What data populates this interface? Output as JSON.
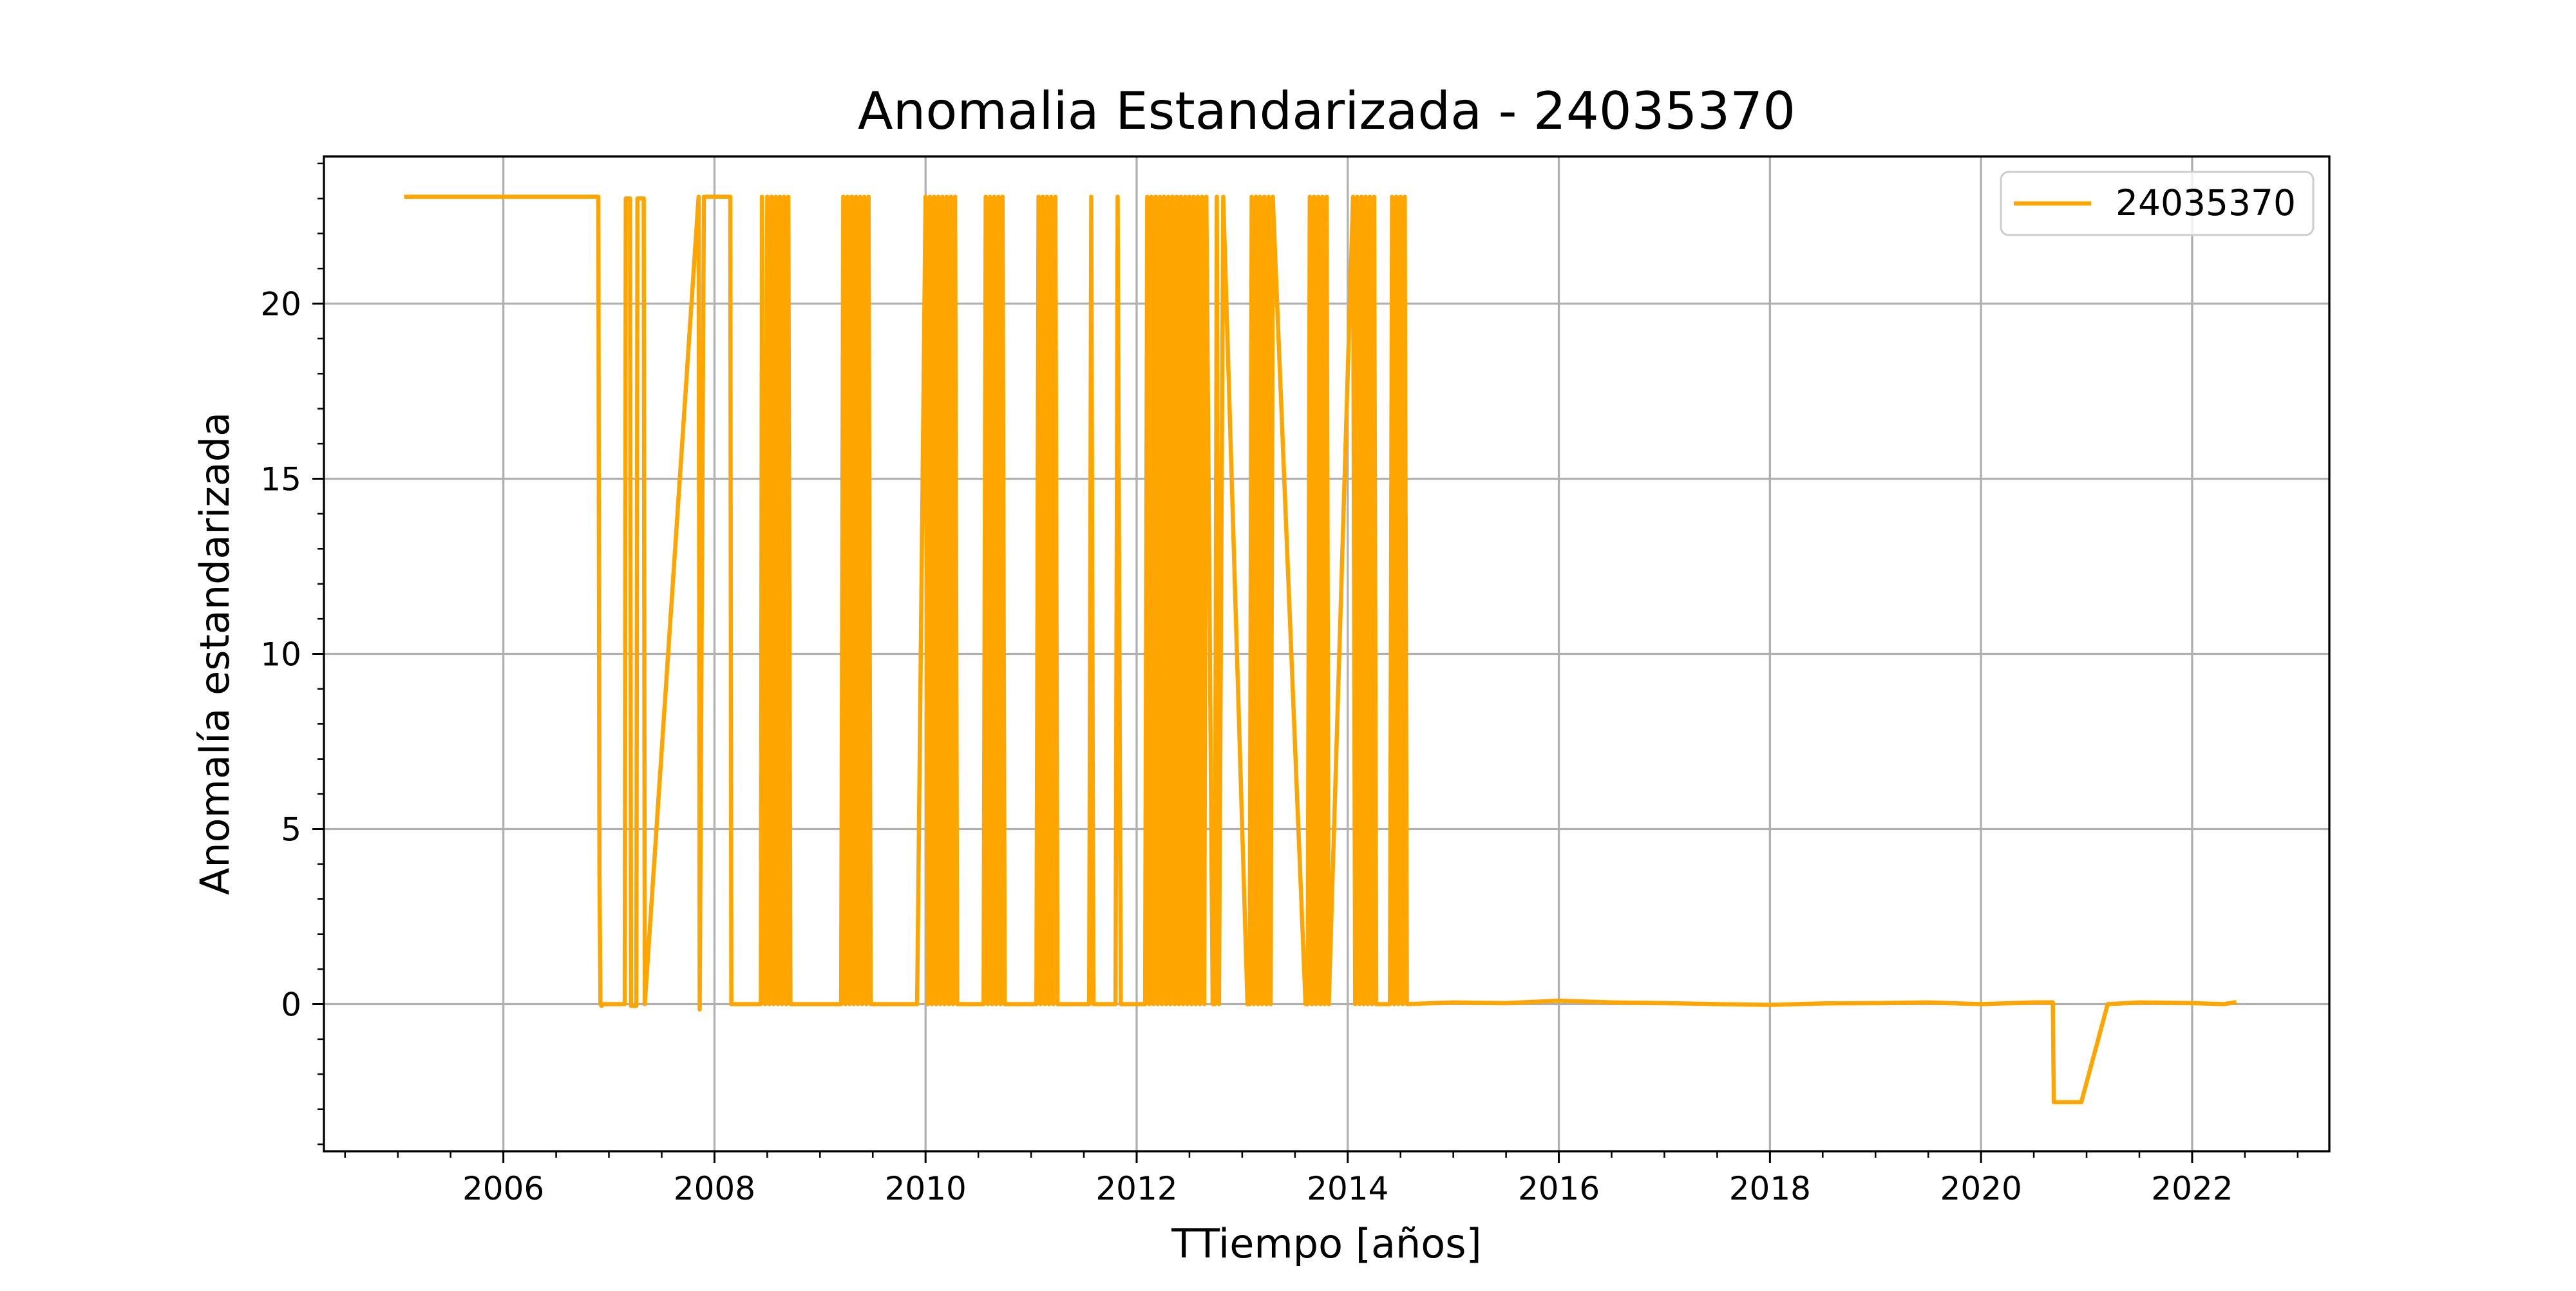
{
  "chart_data": {
    "type": "line",
    "title": "Anomalia Estandarizada - 24035370",
    "xlabel": "TTiempo [años]",
    "ylabel": "Anomalía estandarizada",
    "xlim": [
      2004.3,
      2023.3
    ],
    "ylim": [
      -4.2,
      24.2
    ],
    "xticks": [
      {
        "value": 2006,
        "label": "2006"
      },
      {
        "value": 2008,
        "label": "2008"
      },
      {
        "value": 2010,
        "label": "2010"
      },
      {
        "value": 2012,
        "label": "2012"
      },
      {
        "value": 2014,
        "label": "2014"
      },
      {
        "value": 2016,
        "label": "2016"
      },
      {
        "value": 2018,
        "label": "2018"
      },
      {
        "value": 2020,
        "label": "2020"
      },
      {
        "value": 2022,
        "label": "2022"
      }
    ],
    "x_minor_step": 0.5,
    "yticks": [
      {
        "value": 0,
        "label": "0"
      },
      {
        "value": 5,
        "label": "5"
      },
      {
        "value": 10,
        "label": "10"
      },
      {
        "value": 15,
        "label": "15"
      },
      {
        "value": 20,
        "label": "20"
      }
    ],
    "y_minor_step": 1,
    "grid": true,
    "legend_position": "top-right",
    "series": [
      {
        "name": "24035370",
        "color": "#FFA500",
        "x": [
          2005.08,
          2006.9,
          2006.91,
          2006.92,
          2006.93,
          2006.95,
          2007.15,
          2007.16,
          2007.2,
          2007.21,
          2007.26,
          2007.27,
          2007.33,
          2007.34,
          2007.85,
          2007.86,
          2007.9,
          2007.91,
          2008.15,
          2008.16,
          2008.22,
          2008.24,
          2008.44,
          2008.45,
          2008.48,
          2008.5,
          2008.52,
          2008.54,
          2008.56,
          2008.58,
          2008.6,
          2008.62,
          2008.64,
          2008.66,
          2008.68,
          2008.7,
          2008.72,
          2008.74,
          2009.2,
          2009.22,
          2009.24,
          2009.26,
          2009.28,
          2009.3,
          2009.32,
          2009.34,
          2009.36,
          2009.38,
          2009.4,
          2009.42,
          2009.44,
          2009.46,
          2009.48,
          2009.9,
          2009.92,
          2010.0,
          2010.02,
          2010.04,
          2010.06,
          2010.08,
          2010.1,
          2010.12,
          2010.14,
          2010.16,
          2010.18,
          2010.2,
          2010.22,
          2010.24,
          2010.26,
          2010.28,
          2010.3,
          2010.55,
          2010.57,
          2010.59,
          2010.61,
          2010.63,
          2010.65,
          2010.67,
          2010.69,
          2010.71,
          2010.73,
          2010.75,
          2010.77,
          2011.05,
          2011.07,
          2011.09,
          2011.11,
          2011.13,
          2011.15,
          2011.17,
          2011.19,
          2011.21,
          2011.23,
          2011.25,
          2011.27,
          2011.55,
          2011.57,
          2011.59,
          2011.61,
          2011.8,
          2011.82,
          2011.85,
          2011.87,
          2012.08,
          2012.1,
          2012.12,
          2012.14,
          2012.16,
          2012.18,
          2012.2,
          2012.22,
          2012.24,
          2012.26,
          2012.28,
          2012.3,
          2012.32,
          2012.34,
          2012.36,
          2012.38,
          2012.4,
          2012.42,
          2012.44,
          2012.46,
          2012.48,
          2012.5,
          2012.52,
          2012.54,
          2012.56,
          2012.58,
          2012.6,
          2012.62,
          2012.64,
          2012.66,
          2012.72,
          2012.74,
          2012.76,
          2012.78,
          2012.82,
          2013.05,
          2013.07,
          2013.09,
          2013.11,
          2013.13,
          2013.15,
          2013.17,
          2013.19,
          2013.21,
          2013.23,
          2013.25,
          2013.27,
          2013.29,
          2013.6,
          2013.62,
          2013.64,
          2013.66,
          2013.68,
          2013.7,
          2013.72,
          2013.74,
          2013.76,
          2013.78,
          2013.8,
          2013.82,
          2014.05,
          2014.07,
          2014.09,
          2014.11,
          2014.13,
          2014.15,
          2014.17,
          2014.19,
          2014.21,
          2014.23,
          2014.25,
          2014.27,
          2014.4,
          2014.42,
          2014.44,
          2014.46,
          2014.48,
          2014.5,
          2014.52,
          2014.54,
          2014.56,
          2015.0,
          2015.5,
          2016.0,
          2016.5,
          2017.0,
          2017.5,
          2018.0,
          2018.5,
          2019.0,
          2019.5,
          2020.0,
          2020.5,
          2020.68,
          2020.69,
          2020.95,
          2021.2,
          2021.5,
          2022.0,
          2022.3,
          2022.4
        ],
        "y": [
          23.05,
          23.05,
          3.8,
          0.0,
          -0.05,
          0.0,
          0.0,
          23.0,
          23.0,
          -0.05,
          -0.05,
          23.0,
          23.0,
          0.0,
          23.05,
          -0.15,
          23.05,
          23.05,
          23.05,
          0.0,
          0.0,
          0.0,
          0.0,
          23.05,
          0.0,
          23.05,
          0.0,
          23.05,
          0.0,
          23.05,
          0.0,
          23.05,
          0.0,
          23.05,
          0.0,
          23.05,
          0.0,
          0.0,
          0.0,
          23.05,
          0.0,
          23.05,
          0.0,
          23.05,
          0.0,
          23.05,
          0.0,
          23.05,
          0.0,
          23.05,
          0.0,
          23.05,
          0.0,
          0.0,
          0.0,
          23.05,
          0.0,
          23.05,
          0.0,
          23.05,
          0.0,
          23.05,
          0.0,
          23.05,
          0.0,
          23.05,
          0.0,
          23.05,
          0.0,
          23.05,
          0.0,
          0.0,
          23.05,
          0.0,
          23.05,
          0.0,
          23.05,
          0.0,
          23.05,
          0.0,
          23.05,
          0.0,
          0.0,
          0.0,
          23.05,
          0.0,
          23.05,
          0.0,
          23.05,
          0.0,
          23.05,
          0.0,
          23.05,
          0.0,
          0.0,
          0.0,
          23.05,
          0.0,
          0.0,
          0.0,
          23.05,
          0.0,
          0.0,
          0.0,
          23.05,
          0.0,
          23.05,
          0.0,
          23.05,
          0.0,
          23.05,
          0.0,
          23.05,
          0.0,
          23.05,
          0.0,
          23.05,
          0.0,
          23.05,
          0.0,
          23.05,
          0.0,
          23.05,
          0.0,
          23.05,
          0.0,
          23.05,
          0.0,
          23.05,
          0.0,
          23.05,
          0.0,
          23.05,
          0.0,
          0.0,
          23.05,
          0.0,
          23.05,
          0.0,
          0.0,
          23.05,
          0.0,
          23.05,
          0.0,
          23.05,
          0.0,
          23.05,
          0.0,
          23.05,
          0.0,
          23.05,
          0.0,
          0.0,
          23.05,
          0.0,
          23.05,
          0.0,
          23.05,
          0.0,
          23.05,
          0.0,
          23.05,
          0.0,
          23.05,
          0.0,
          23.05,
          0.0,
          23.05,
          0.0,
          23.05,
          0.0,
          23.05,
          0.0,
          23.05,
          0.0,
          0.0,
          23.05,
          0.0,
          23.05,
          0.0,
          23.05,
          0.0,
          23.05,
          0.0,
          0.05,
          0.03,
          0.1,
          0.05,
          0.03,
          0.0,
          -0.02,
          0.02,
          0.03,
          0.05,
          0.0,
          0.05,
          0.05,
          -2.8,
          -2.8,
          0.0,
          0.05,
          0.03,
          0.0,
          0.05
        ]
      }
    ]
  }
}
